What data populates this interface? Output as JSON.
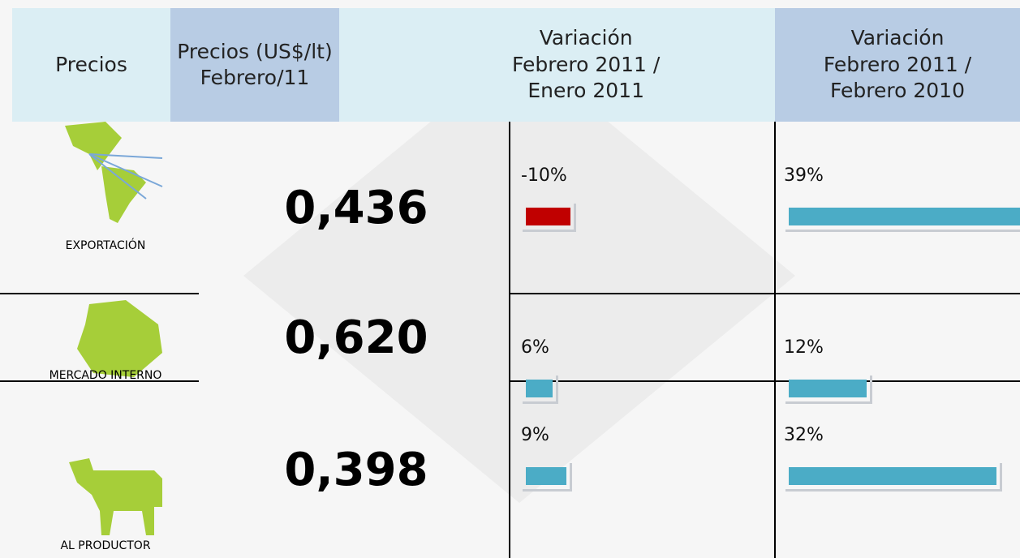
{
  "table": {
    "headers": [
      "Precios",
      "Precios (US$/lt)\nFebrero/11",
      "Variación\nFebrero 2011 /\nEnero 2011",
      "Variación\nFebrero 2011 /\nFebrero 2010"
    ],
    "rows": [
      {
        "label": "EXPORTACIÓN",
        "price": "0,436",
        "var_month": {
          "value": -10,
          "label": "-10%"
        },
        "var_year": {
          "value": 39,
          "label": "39%"
        }
      },
      {
        "label": "MERCADO INTERNO",
        "price": "0,620",
        "var_month": {
          "value": 6,
          "label": "6%"
        },
        "var_year": {
          "value": 12,
          "label": "12%"
        }
      },
      {
        "label": "AL PRODUCTOR",
        "price": "0,398",
        "var_month": {
          "value": 9,
          "label": "9%"
        },
        "var_year": {
          "value": 32,
          "label": "32%"
        }
      }
    ],
    "colors": {
      "negative": "#c00000",
      "positive": "#4bacc6"
    }
  }
}
